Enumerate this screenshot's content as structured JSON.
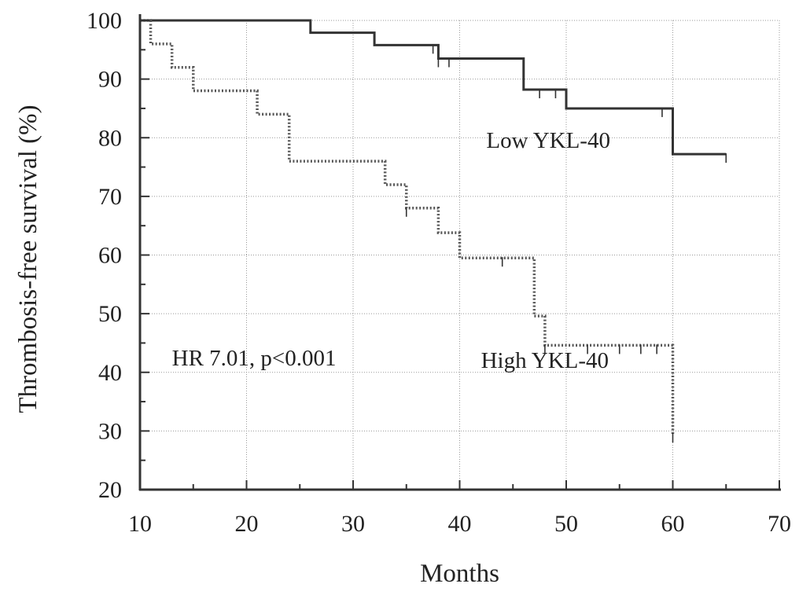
{
  "chart_data": {
    "type": "line",
    "title": "",
    "xlabel": "Months",
    "ylabel": "Thrombosis-free survival (%)",
    "xlim": [
      10,
      70
    ],
    "ylim": [
      20,
      100
    ],
    "x_ticks": [
      10,
      20,
      30,
      40,
      50,
      60,
      70
    ],
    "y_ticks": [
      20,
      30,
      40,
      50,
      60,
      70,
      80,
      90,
      100
    ],
    "grid": true,
    "series": [
      {
        "name": "Low YKL-40",
        "line_style": "solid",
        "color": "#333333",
        "steps": [
          [
            10,
            100
          ],
          [
            26,
            97.9
          ],
          [
            32,
            95.8
          ],
          [
            38,
            93.5
          ],
          [
            46,
            88.2
          ],
          [
            50,
            85
          ],
          [
            60,
            77.2
          ],
          [
            65,
            77.2
          ]
        ],
        "censored": [
          [
            37.5,
            95.8
          ],
          [
            38,
            93.5
          ],
          [
            39,
            93.5
          ],
          [
            47.5,
            88.2
          ],
          [
            49,
            88.2
          ],
          [
            59,
            85
          ],
          [
            65,
            77.2
          ]
        ]
      },
      {
        "name": "High YKL-40",
        "line_style": "dotted",
        "color": "#555555",
        "steps": [
          [
            10,
            100
          ],
          [
            11,
            96
          ],
          [
            13,
            92
          ],
          [
            15,
            88
          ],
          [
            21,
            84
          ],
          [
            24,
            76
          ],
          [
            33,
            72
          ],
          [
            35,
            68
          ],
          [
            38,
            63.8
          ],
          [
            40,
            59.5
          ],
          [
            47,
            49.6
          ],
          [
            48,
            44.6
          ],
          [
            60,
            29.5
          ]
        ],
        "censored": [
          [
            35,
            68
          ],
          [
            44,
            59.5
          ],
          [
            48,
            44.6
          ],
          [
            52,
            44.6
          ],
          [
            55,
            44.6
          ],
          [
            57,
            44.6
          ],
          [
            58.5,
            44.6
          ],
          [
            60,
            29.5
          ]
        ]
      }
    ],
    "annotations": [
      {
        "text": "Low YKL-40",
        "x": 42.5,
        "y": 78.3
      },
      {
        "text": "High YKL-40",
        "x": 42,
        "y": 40.8
      },
      {
        "text": "HR 7.01, p<0.001",
        "x": 13,
        "y": 41.2
      }
    ]
  }
}
